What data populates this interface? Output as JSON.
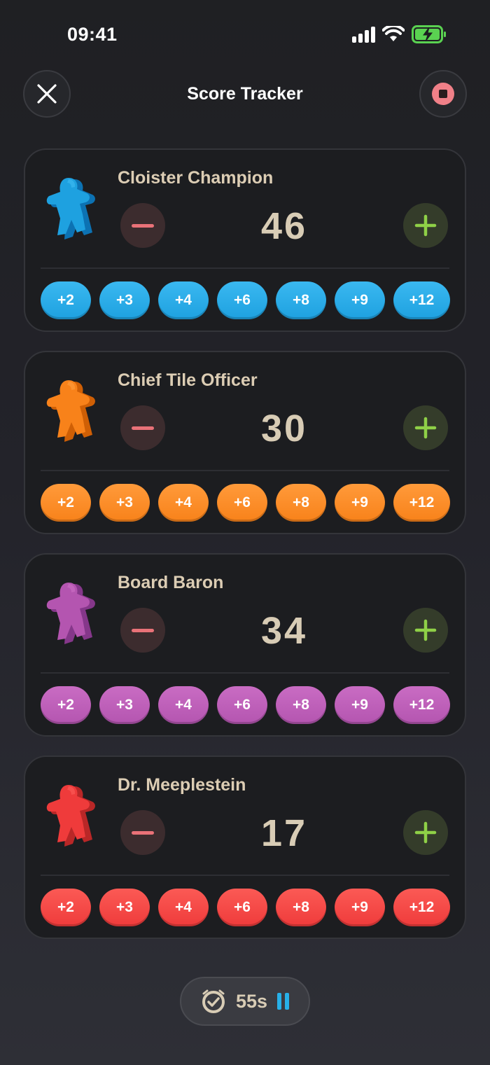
{
  "status": {
    "time": "09:41"
  },
  "header": {
    "title": "Score Tracker"
  },
  "quick_values": [
    "+2",
    "+3",
    "+4",
    "+6",
    "+8",
    "+9",
    "+12"
  ],
  "players": [
    {
      "name": "Cloister Champion",
      "score": "46",
      "color": "#1ea1e0",
      "color_dark": "#0c72b3",
      "color_light": "#3ab8f0"
    },
    {
      "name": "Chief Tile Officer",
      "score": "30",
      "color": "#f8821a",
      "color_dark": "#cf5f05",
      "color_light": "#ff9a3a"
    },
    {
      "name": "Board Baron",
      "score": "34",
      "color": "#b455b0",
      "color_dark": "#85378a",
      "color_light": "#c96cc3"
    },
    {
      "name": "Dr. Meeplestein",
      "score": "17",
      "color": "#ef3b3b",
      "color_dark": "#b92727",
      "color_light": "#fb5a55"
    }
  ],
  "timer": {
    "label": "55s"
  },
  "icons": {
    "close": "close-icon",
    "stop": "stop-icon",
    "minus": "minus-icon",
    "plus": "plus-icon",
    "timer": "timer-icon",
    "pause": "pause-icon",
    "meeple": "meeple-icon"
  }
}
